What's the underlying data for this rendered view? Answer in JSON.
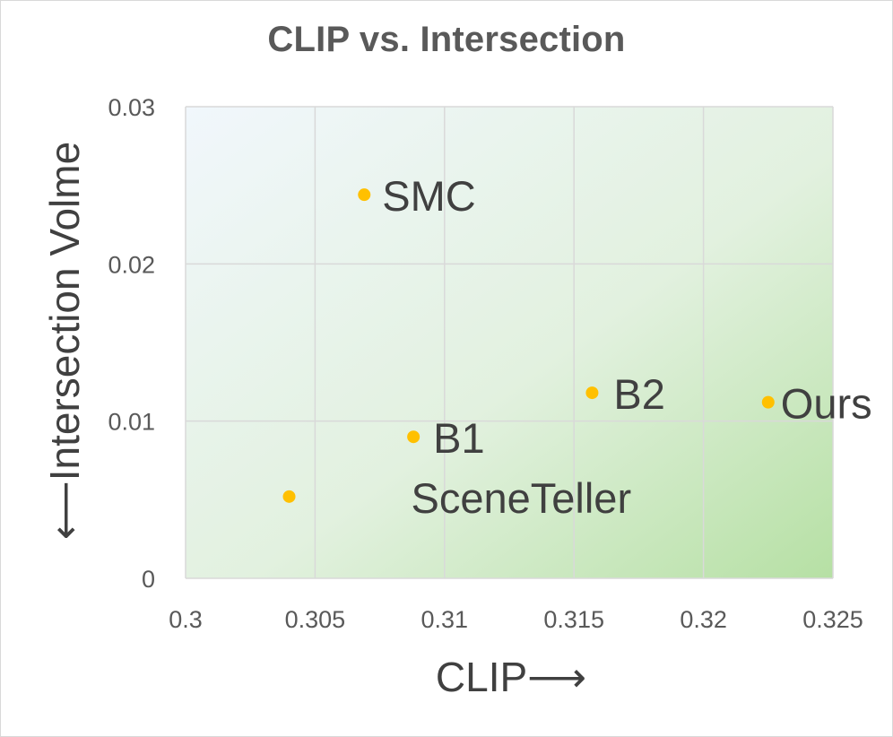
{
  "chart_data": {
    "type": "scatter",
    "title": "CLIP vs. Intersection",
    "xlabel": "CLIP⟶",
    "ylabel": "⟵Intersection Volme",
    "xlim": [
      0.3,
      0.325
    ],
    "ylim": [
      0,
      0.03
    ],
    "x_ticks": [
      "0.3",
      "0.305",
      "0.31",
      "0.315",
      "0.32",
      "0.325"
    ],
    "y_ticks": [
      "0",
      "0.01",
      "0.02",
      "0.03"
    ],
    "grid": true,
    "legend": "none",
    "marker_color": "#ffc000",
    "points": [
      {
        "label": "SMC",
        "x": 0.3069,
        "y": 0.0244
      },
      {
        "label": "B1",
        "x": 0.3088,
        "y": 0.009
      },
      {
        "label": "SceneTeller",
        "x": 0.304,
        "y": 0.0052
      },
      {
        "label": "B2",
        "x": 0.3157,
        "y": 0.0118
      },
      {
        "label": "Ours",
        "x": 0.3225,
        "y": 0.0112
      }
    ]
  }
}
